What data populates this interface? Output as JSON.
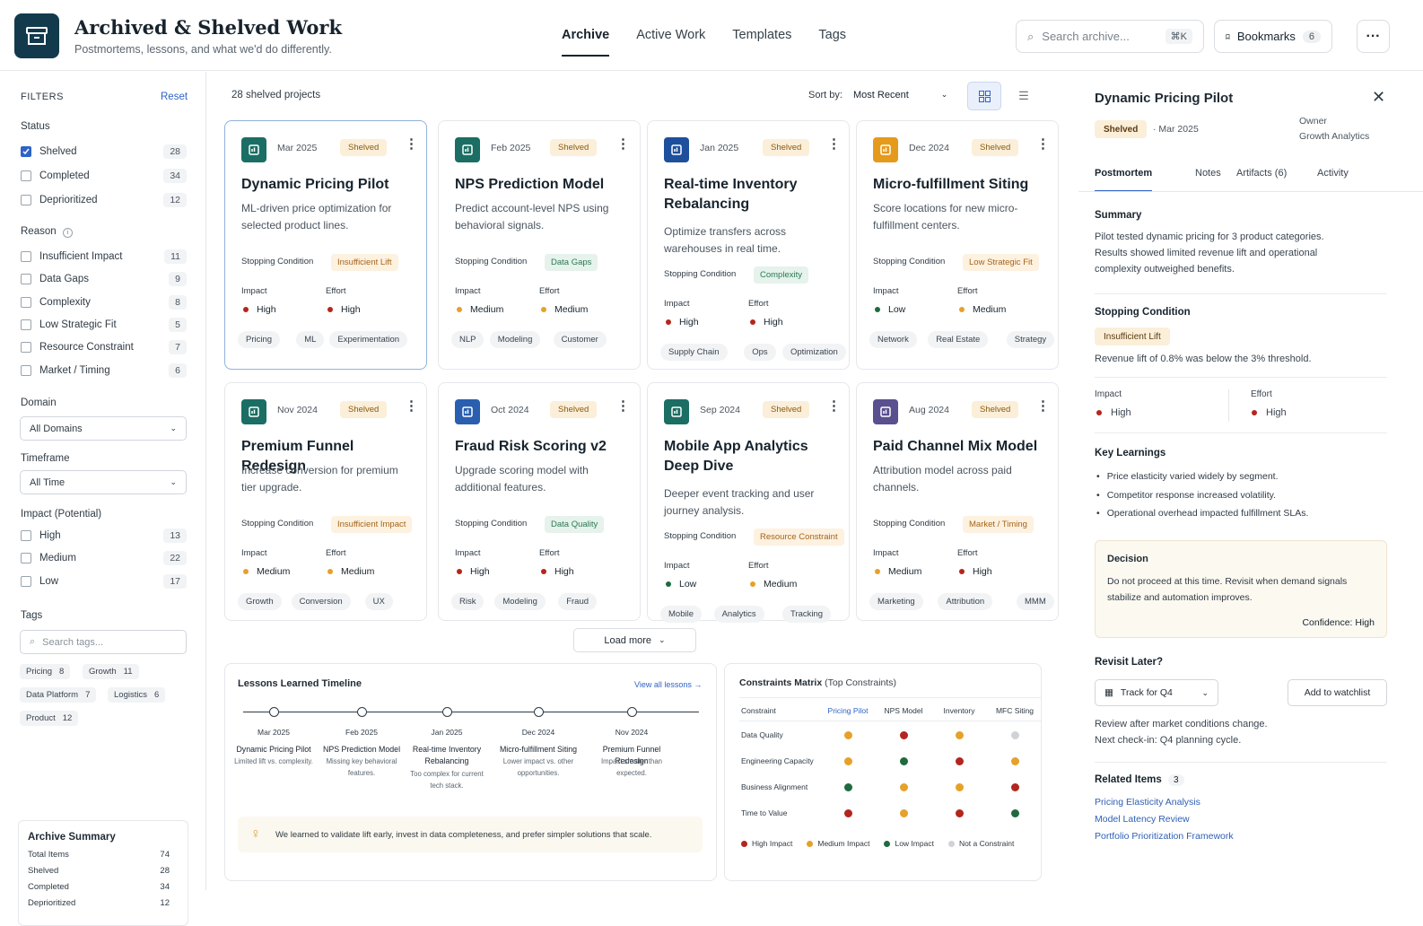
{
  "header": {
    "title": "Archived & Shelved Work",
    "subtitle": "Postmortems, lessons, and what we'd do differently.",
    "nav": [
      "Archive",
      "Active Work",
      "Templates",
      "Tags"
    ],
    "search_placeholder": "Search archive...",
    "search_shortcut": "⌘K",
    "bookmarks_label": "Bookmarks",
    "bookmarks_count": "6"
  },
  "filters": {
    "title": "FILTERS",
    "reset": "Reset",
    "status_label": "Status",
    "status": [
      {
        "label": "Shelved",
        "count": "28",
        "checked": true
      },
      {
        "label": "Completed",
        "count": "34"
      },
      {
        "label": "Deprioritized",
        "count": "12"
      }
    ],
    "reason_label": "Reason",
    "reasons": [
      {
        "label": "Insufficient Impact",
        "count": "11"
      },
      {
        "label": "Data Gaps",
        "count": "9"
      },
      {
        "label": "Complexity",
        "count": "8"
      },
      {
        "label": "Low Strategic Fit",
        "count": "5"
      },
      {
        "label": "Resource Constraint",
        "count": "7"
      },
      {
        "label": "Market / Timing",
        "count": "6"
      }
    ],
    "domain_label": "Domain",
    "domain_value": "All Domains",
    "timeframe_label": "Timeframe",
    "timeframe_value": "All Time",
    "impact_label": "Impact (Potential)",
    "impacts": [
      {
        "label": "High",
        "count": "13"
      },
      {
        "label": "Medium",
        "count": "22"
      },
      {
        "label": "Low",
        "count": "17"
      }
    ],
    "tags_label": "Tags",
    "tags_placeholder": "Search tags...",
    "tags": [
      {
        "label": "Pricing",
        "count": "8"
      },
      {
        "label": "Growth",
        "count": "11"
      },
      {
        "label": "Data Platform",
        "count": "7"
      },
      {
        "label": "Logistics",
        "count": "6"
      },
      {
        "label": "Product",
        "count": "12"
      }
    ],
    "summary": {
      "title": "Archive Summary",
      "rows": [
        {
          "label": "Total Items",
          "value": "74"
        },
        {
          "label": "Shelved",
          "value": "28"
        },
        {
          "label": "Completed",
          "value": "34"
        },
        {
          "label": "Deprioritized",
          "value": "12"
        }
      ]
    }
  },
  "list": {
    "count_label": "28 shelved projects",
    "sort_label": "Sort by:",
    "sort_value": "Most Recent",
    "load_more": "Load more"
  },
  "common": {
    "status": "Shelved",
    "stopping": "Stopping Condition",
    "impact": "Impact",
    "effort": "Effort"
  },
  "cards": [
    {
      "date": "Mar 2025",
      "title": "Dynamic Pricing Pilot",
      "desc": "ML-driven price optimization for selected product lines.",
      "reason": "Insufficient Lift",
      "impact": "High",
      "effort": "High",
      "tags": [
        "Pricing",
        "ML",
        "Experimentation"
      ]
    },
    {
      "date": "Feb 2025",
      "title": "NPS Prediction Model",
      "desc": "Predict account-level NPS using behavioral signals.",
      "reason": "Data Gaps",
      "impact": "Medium",
      "effort": "Medium",
      "tags": [
        "NLP",
        "Modeling",
        "Customer"
      ]
    },
    {
      "date": "Jan 2025",
      "title": "Real-time Inventory Rebalancing",
      "desc": "Optimize transfers across warehouses in real time.",
      "reason": "Complexity",
      "impact": "High",
      "effort": "High",
      "tags": [
        "Supply Chain",
        "Ops",
        "Optimization"
      ]
    },
    {
      "date": "Dec 2024",
      "title": "Micro-fulfillment Siting",
      "desc": "Score locations for new micro-fulfillment centers.",
      "reason": "Low Strategic Fit",
      "impact": "Low",
      "effort": "Medium",
      "tags": [
        "Network",
        "Real Estate",
        "Strategy"
      ]
    },
    {
      "date": "Nov 2024",
      "title": "Premium Funnel Redesign",
      "desc": "Increase conversion for premium tier upgrade.",
      "reason": "Insufficient Impact",
      "impact": "Medium",
      "effort": "Medium",
      "tags": [
        "Growth",
        "Conversion",
        "UX"
      ]
    },
    {
      "date": "Oct 2024",
      "title": "Fraud Risk Scoring v2",
      "desc": "Upgrade scoring model with additional features.",
      "reason": "Data Quality",
      "impact": "High",
      "effort": "High",
      "tags": [
        "Risk",
        "Modeling",
        "Fraud"
      ]
    },
    {
      "date": "Sep 2024",
      "title": "Mobile App Analytics Deep Dive",
      "desc": "Deeper event tracking and user journey analysis.",
      "reason": "Resource Constraint",
      "impact": "Low",
      "effort": "Medium",
      "tags": [
        "Mobile",
        "Analytics",
        "Tracking"
      ]
    },
    {
      "date": "Aug 2024",
      "title": "Paid Channel Mix Model",
      "desc": "Attribution model across paid channels.",
      "reason": "Market / Timing",
      "impact": "Medium",
      "effort": "High",
      "tags": [
        "Marketing",
        "Attribution",
        "MMM"
      ]
    }
  ],
  "timeline": {
    "title": "Lessons Learned Timeline",
    "view_all": "View all lessons →",
    "items": [
      {
        "date": "Mar 2025",
        "title": "Dynamic Pricing Pilot",
        "note": "Limited lift vs. complexity."
      },
      {
        "date": "Feb 2025",
        "title": "NPS Prediction Model",
        "note": "Missing key behavioral features."
      },
      {
        "date": "Jan 2025",
        "title": "Real-time Inventory Rebalancing",
        "note": "Too complex for current tech stack."
      },
      {
        "date": "Dec 2024",
        "title": "Micro-fulfillment Siting",
        "note": "Lower impact vs. other opportunities."
      },
      {
        "date": "Nov 2024",
        "title": "Premium Funnel Redesign",
        "note": "Impact smaller than expected."
      }
    ],
    "lesson": "We learned to validate lift early, invest in data completeness, and prefer simpler solutions that scale."
  },
  "matrix": {
    "title": "Constraints Matrix",
    "subtitle": "(Top Constraints)",
    "col_header": "Constraint",
    "cols": [
      "Pricing Pilot",
      "NPS Model",
      "Inventory",
      "MFC Siting"
    ],
    "rows": [
      {
        "label": "Data Quality",
        "vals": [
          "medium",
          "high",
          "medium",
          "none"
        ]
      },
      {
        "label": "Engineering Capacity",
        "vals": [
          "medium",
          "low",
          "high",
          "medium"
        ]
      },
      {
        "label": "Business Alignment",
        "vals": [
          "low",
          "medium",
          "medium",
          "high"
        ]
      },
      {
        "label": "Time to Value",
        "vals": [
          "high",
          "medium",
          "high",
          "low"
        ]
      }
    ],
    "legend": [
      "High Impact",
      "Medium Impact",
      "Low Impact",
      "Not a Constraint"
    ]
  },
  "detail": {
    "title": "Dynamic Pricing Pilot",
    "status": "Shelved",
    "date": "Mar 2025",
    "owner_label": "Owner",
    "owner": "Growth Analytics",
    "tabs": [
      "Postmortem",
      "Notes",
      "Artifacts (6)",
      "Activity"
    ],
    "summary_label": "Summary",
    "summary": "Pilot tested dynamic pricing for 3 product categories. Results showed limited revenue lift and operational complexity outweighed benefits.",
    "stopping_label": "Stopping Condition",
    "stopping_tag": "Insufficient Lift",
    "stopping_text": "Revenue lift of 0.8% was below the 3% threshold.",
    "impact_label": "Impact",
    "impact": "High",
    "effort_label": "Effort",
    "effort": "High",
    "learnings_label": "Key Learnings",
    "learnings": [
      "Price elasticity varied widely by segment.",
      "Competitor response increased volatility.",
      "Operational overhead impacted fulfillment SLAs."
    ],
    "decision_label": "Decision",
    "decision": "Do not proceed at this time. Revisit when demand signals stabilize and automation improves.",
    "confidence": "Confidence: High",
    "revisit_label": "Revisit Later?",
    "track_value": "Track for Q4",
    "watch_button": "Add to watchlist",
    "revisit_text": "Review after market conditions change.",
    "revisit_next": "Next check-in: Q4 planning cycle.",
    "related_label": "Related Items",
    "related_count": "3",
    "related": [
      "Pricing Elasticity Analysis",
      "Model Latency Review",
      "Portfolio Prioritization Framework"
    ]
  },
  "colors": {
    "accent": "#2f63c7",
    "brand": "#123a4c",
    "high": "#b3261e",
    "medium": "#e6a12a",
    "low": "#1f6b3f",
    "none": "#cfd3d7"
  }
}
